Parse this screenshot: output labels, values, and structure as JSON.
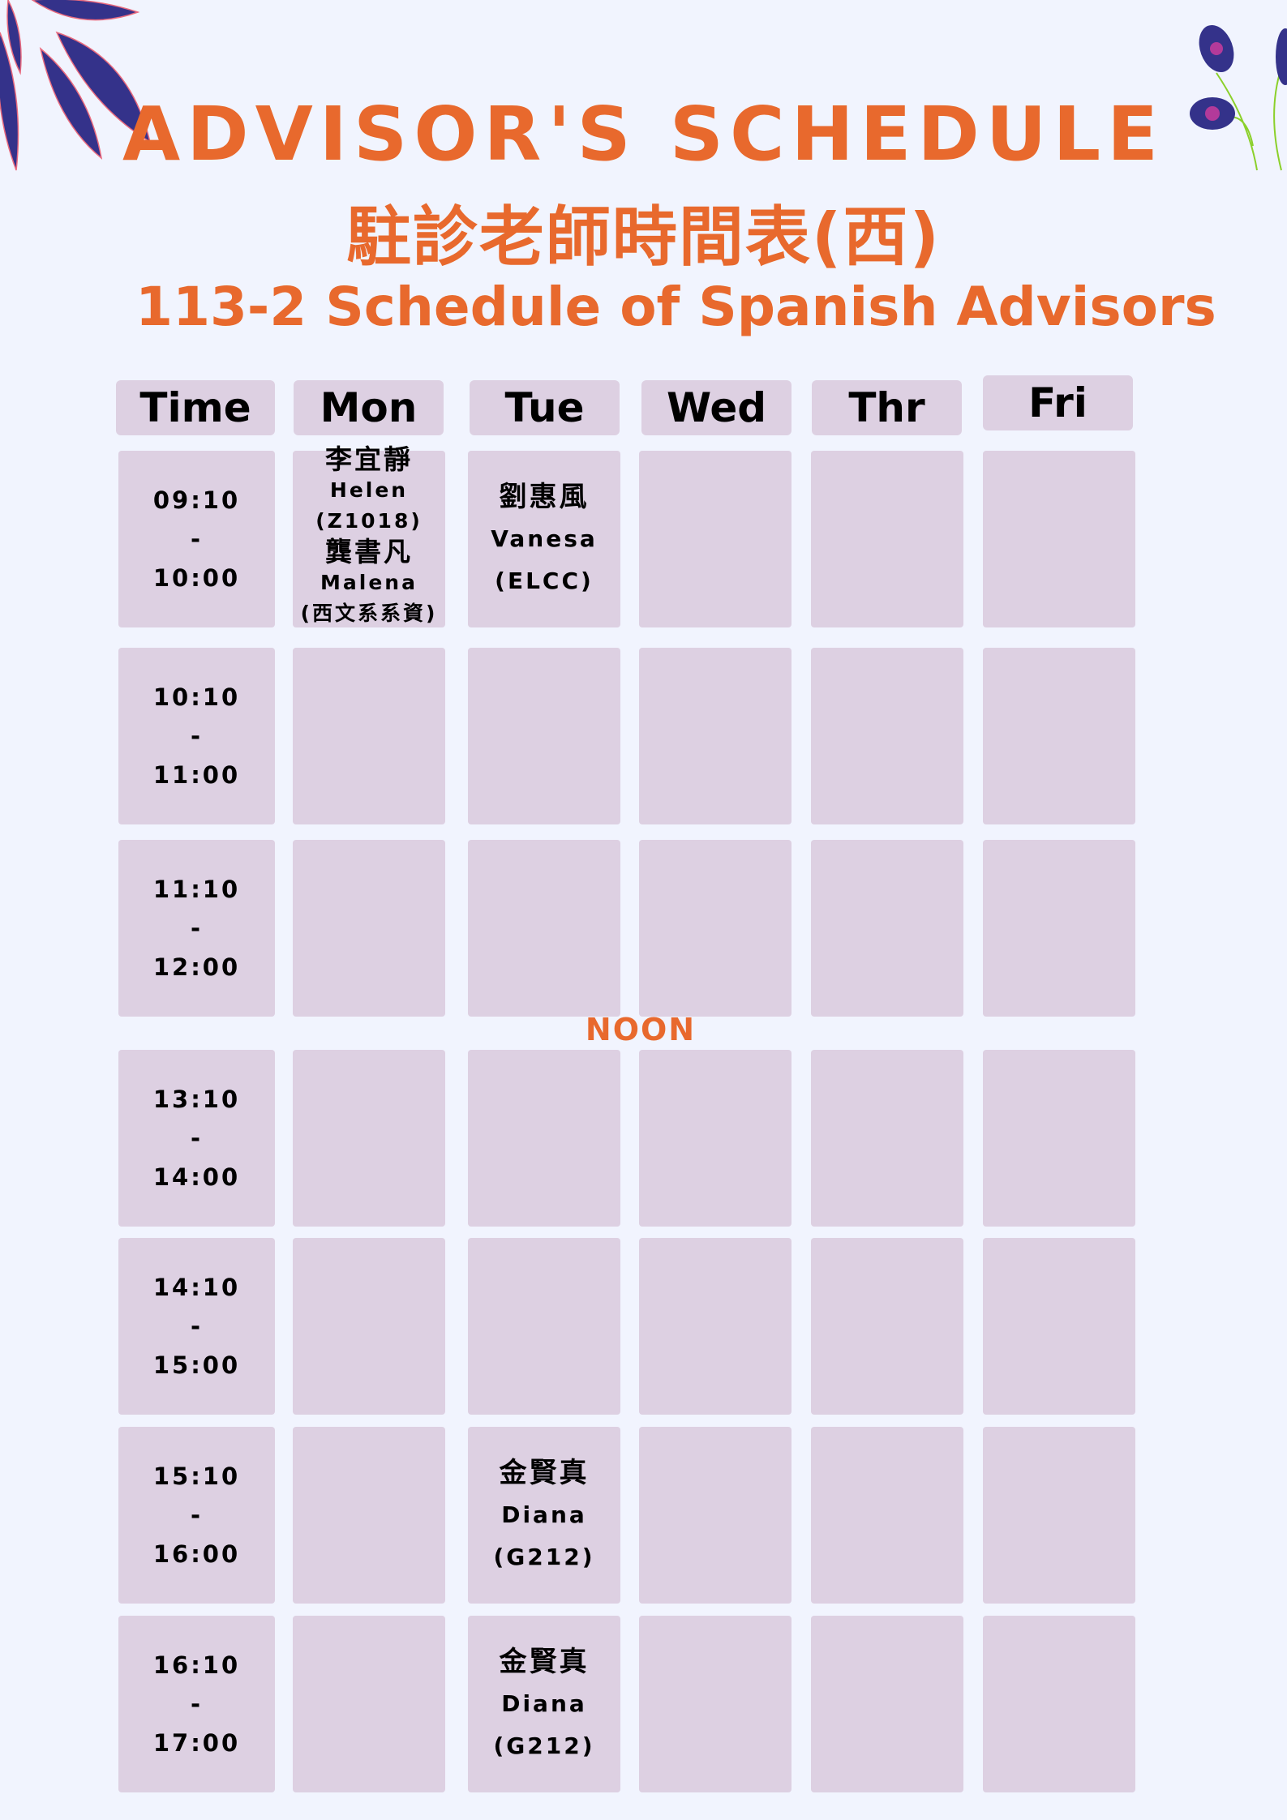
{
  "header": {
    "title_en": "ADVISOR'S SCHEDULE",
    "title_zh": "駐診老師時間表(西)",
    "subtitle": "113-2 Schedule of Spanish Advisors"
  },
  "colors": {
    "background": "#f1f4fe",
    "accent": "#e8692d",
    "cell": "#ddd0e2"
  },
  "columns": [
    "Time",
    "Mon",
    "Tue",
    "Wed",
    "Thr",
    "Fri"
  ],
  "noon_label": "NOON",
  "rows": [
    {
      "start": "09:10",
      "dash": "-",
      "end": "10:00"
    },
    {
      "start": "10:10",
      "dash": "-",
      "end": "11:00"
    },
    {
      "start": "11:10",
      "dash": "-",
      "end": "12:00"
    },
    {
      "start": "13:10",
      "dash": "-",
      "end": "14:00"
    },
    {
      "start": "14:10",
      "dash": "-",
      "end": "15:00"
    },
    {
      "start": "15:10",
      "dash": "-",
      "end": "16:00"
    },
    {
      "start": "16:10",
      "dash": "-",
      "end": "17:00"
    }
  ],
  "entries": {
    "mon_0910": {
      "name_zh": "李宜靜",
      "name_en": "Helen",
      "room": "(Z1018)",
      "name2_zh": "龔書凡",
      "name2_en": "Malena",
      "room2": "(西文系系資)"
    },
    "tue_0910": {
      "name_zh": "劉惠風",
      "name_en": "Vanesa",
      "room": "(ELCC)"
    },
    "tue_1510": {
      "name_zh": "金賢真",
      "name_en": "Diana",
      "room": "(G212)"
    },
    "tue_1610": {
      "name_zh": "金賢真",
      "name_en": "Diana",
      "room": "(G212)"
    }
  }
}
